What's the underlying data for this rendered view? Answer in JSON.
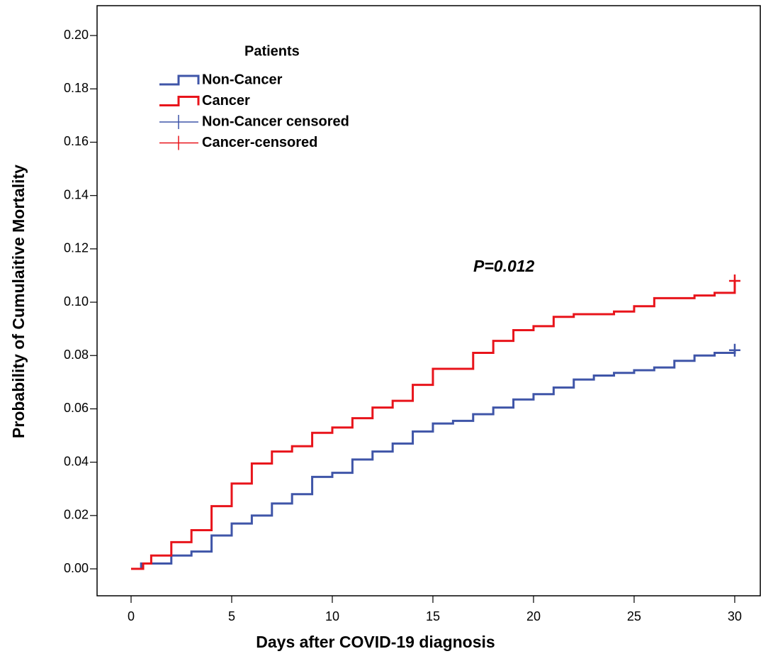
{
  "chart_data": {
    "type": "step",
    "x_label": "Days after COVID-19 diagnosis",
    "y_label": "Probability of Cumulaitive Mortality",
    "legend_title": "Patients",
    "annotation": "P=0.012",
    "xlim": [
      -1.69,
      31.27
    ],
    "ylim": [
      -0.0101,
      0.2112
    ],
    "xticks": [
      0,
      5,
      10,
      15,
      20,
      25,
      30
    ],
    "yticks": [
      {
        "value": 0,
        "label": "0.00"
      },
      {
        "value": 0.02,
        "label": "0.02"
      },
      {
        "value": 0.04,
        "label": "0.04"
      },
      {
        "value": 0.06,
        "label": "0.06"
      },
      {
        "value": 0.08,
        "label": "0.08"
      },
      {
        "value": 0.1,
        "label": "0.10"
      },
      {
        "value": 0.12,
        "label": "0.12"
      },
      {
        "value": 0.14,
        "label": "0.14"
      },
      {
        "value": 0.16,
        "label": "0.16"
      },
      {
        "value": 0.18,
        "label": "0.18"
      },
      {
        "value": 0.2,
        "label": "0.20"
      }
    ],
    "series": [
      {
        "name": "Non-Cancer",
        "color": "#3f55a8",
        "x": [
          0,
          0.5,
          2,
          3,
          4,
          5,
          6,
          7,
          8,
          9,
          10,
          11,
          12,
          13,
          14,
          15,
          16,
          17,
          18,
          19,
          20,
          21,
          22,
          23,
          24,
          25,
          26,
          27,
          28,
          29,
          30
        ],
        "values": [
          0,
          0.002,
          0.005,
          0.0065,
          0.0125,
          0.017,
          0.02,
          0.0245,
          0.028,
          0.0345,
          0.036,
          0.041,
          0.044,
          0.047,
          0.0515,
          0.0545,
          0.0555,
          0.058,
          0.0605,
          0.0635,
          0.0655,
          0.068,
          0.071,
          0.0725,
          0.0735,
          0.0745,
          0.0755,
          0.078,
          0.08,
          0.081,
          0.082
        ]
      },
      {
        "name": "Cancer",
        "color": "#e8141b",
        "x": [
          0,
          0.6,
          1,
          2,
          3,
          4,
          5,
          6,
          7,
          8,
          9,
          10,
          11,
          12,
          13,
          14,
          15,
          17,
          18,
          19,
          20,
          21,
          22,
          24,
          25,
          26,
          28,
          29,
          30
        ],
        "values": [
          0,
          0.002,
          0.005,
          0.01,
          0.0145,
          0.0235,
          0.032,
          0.0395,
          0.044,
          0.046,
          0.051,
          0.053,
          0.0565,
          0.0605,
          0.063,
          0.069,
          0.075,
          0.081,
          0.0855,
          0.0895,
          0.091,
          0.0945,
          0.0955,
          0.0965,
          0.0985,
          0.1015,
          0.1025,
          0.1035,
          0.108
        ]
      },
      {
        "name": "Non-Cancer censored",
        "color": "#3f55a8",
        "censored": true,
        "x": [
          30
        ],
        "values": [
          0.082
        ]
      },
      {
        "name": "Cancer-censored",
        "color": "#e8141b",
        "censored": true,
        "x": [
          30
        ],
        "values": [
          0.108
        ]
      }
    ]
  }
}
